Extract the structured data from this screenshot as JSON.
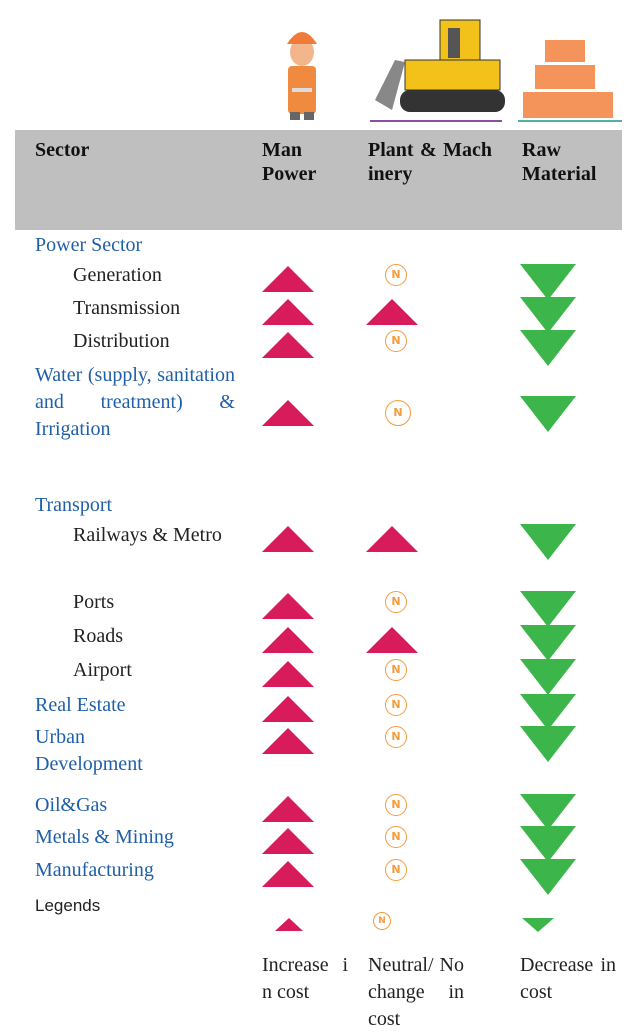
{
  "header": {
    "columns": [
      "Sector",
      "Man Power",
      "Plant & Machinery",
      "Raw Material"
    ]
  },
  "sectors": [
    {
      "name": "Power Sector",
      "subsectors": [
        "Generation",
        "Transmission",
        "Distribution"
      ]
    },
    {
      "name": "Water (supply, sanitation and treatment) & Irrigation"
    },
    {
      "name": "Transport",
      "subsectors": [
        "Railways & Metro",
        "Ports",
        "Roads",
        "Airport"
      ]
    },
    {
      "name": "Real Estate"
    },
    {
      "name": "Urban Development"
    },
    {
      "name": "Oil&Gas"
    },
    {
      "name": "Metals & Mining"
    },
    {
      "name": "Manufacturing"
    }
  ],
  "legends": {
    "title": "Legends",
    "items": [
      {
        "label": "Increase in cost"
      },
      {
        "symbol": "N",
        "label": "Neutral/ No change in cost"
      },
      {
        "label": "Decrease in cost"
      }
    ]
  }
}
